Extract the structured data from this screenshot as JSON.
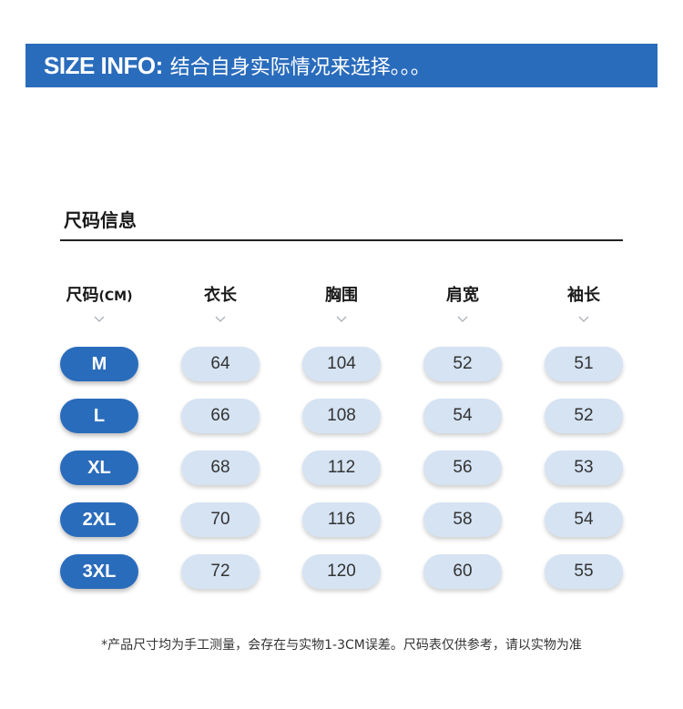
{
  "banner": {
    "label": "SIZE INFO:",
    "text": "结合自身实际情况来选择。。。"
  },
  "section_title": "尺码信息",
  "table": {
    "headers": [
      {
        "main": "尺码",
        "unit": "(CM)"
      },
      {
        "main": "衣长",
        "unit": ""
      },
      {
        "main": "胸围",
        "unit": ""
      },
      {
        "main": "肩宽",
        "unit": ""
      },
      {
        "main": "袖长",
        "unit": ""
      }
    ],
    "rows": [
      {
        "size": "M",
        "values": [
          "64",
          "104",
          "52",
          "51"
        ]
      },
      {
        "size": "L",
        "values": [
          "66",
          "108",
          "54",
          "52"
        ]
      },
      {
        "size": "XL",
        "values": [
          "68",
          "112",
          "56",
          "53"
        ]
      },
      {
        "size": "2XL",
        "values": [
          "70",
          "116",
          "58",
          "54"
        ]
      },
      {
        "size": "3XL",
        "values": [
          "72",
          "120",
          "60",
          "55"
        ]
      }
    ]
  },
  "footnote": "*产品尺寸均为手工测量，会存在与实物1-3CM误差。尺码表仅供参考，请以实物为准",
  "colors": {
    "accent": "#2a6cbc",
    "pill_light": "#d5e3f3"
  }
}
